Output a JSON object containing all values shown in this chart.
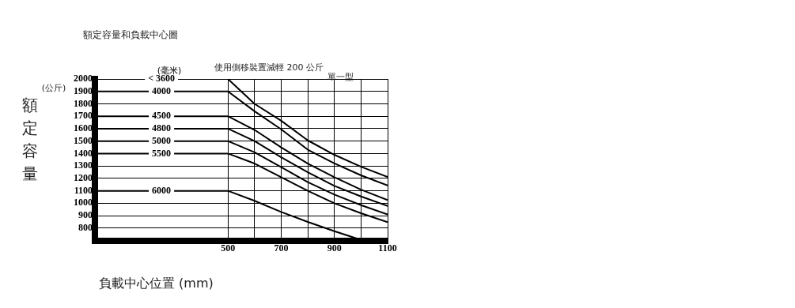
{
  "chart_data": {
    "type": "line",
    "title": "額定容量和負載中心圖",
    "xlabel": "負載中心位置 (mm)",
    "ylabel": "額定容量",
    "legend_title": "(毫米)",
    "annotations": [
      "(公斤)",
      "使用側移裝置減輕 200 公斤",
      "單一型"
    ],
    "xlim": [
      0,
      1100
    ],
    "ylim": [
      700,
      2000
    ],
    "xticks": [
      500,
      {
        "value": 600,
        "label": null
      },
      700,
      {
        "value": 800,
        "label": null
      },
      900,
      {
        "value": 1000,
        "label": null
      },
      1100
    ],
    "yticks": [
      800,
      900,
      1000,
      1100,
      1200,
      1300,
      1400,
      1500,
      1600,
      1700,
      1800,
      1900,
      2000
    ],
    "grid": true,
    "marker": "none",
    "line_style": "solid",
    "series": [
      {
        "name": "< 3600",
        "color": "#000000",
        "x": [
          0,
          500,
          600,
          700,
          800,
          900,
          1000,
          1100
        ],
        "values": [
          2000,
          2000,
          1800,
          1664,
          1506,
          1390,
          1294,
          1211
        ]
      },
      {
        "name": "4000",
        "color": "#000000",
        "x": [
          0,
          500,
          600,
          700,
          800,
          900,
          1000,
          1100
        ],
        "values": [
          1900,
          1900,
          1740,
          1595,
          1431,
          1321,
          1225,
          1143
        ]
      },
      {
        "name": "4500",
        "color": "#000000",
        "x": [
          0,
          500,
          600,
          700,
          800,
          900,
          1000,
          1100
        ],
        "values": [
          1700,
          1700,
          1590,
          1450,
          1320,
          1210,
          1110,
          1026
        ]
      },
      {
        "name": "4800",
        "color": "#000000",
        "x": [
          0,
          500,
          600,
          700,
          800,
          900,
          1000,
          1100
        ],
        "values": [
          1600,
          1600,
          1500,
          1370,
          1250,
          1140,
          1055,
          978
        ]
      },
      {
        "name": "5000",
        "color": "#000000",
        "x": [
          0,
          500,
          600,
          700,
          800,
          900,
          1000,
          1100
        ],
        "values": [
          1500,
          1500,
          1410,
          1290,
          1170,
          1070,
          985,
          910
        ]
      },
      {
        "name": "5500",
        "color": "#000000",
        "x": [
          0,
          500,
          600,
          700,
          800,
          900,
          1000,
          1100
        ],
        "values": [
          1400,
          1400,
          1320,
          1210,
          1100,
          1000,
          920,
          848
        ]
      },
      {
        "name": "6000",
        "color": "#000000",
        "x": [
          0,
          500,
          600,
          700,
          800,
          900,
          1000
        ],
        "values": [
          1100,
          1100,
          1020,
          930,
          850,
          775,
          705
        ]
      }
    ]
  }
}
